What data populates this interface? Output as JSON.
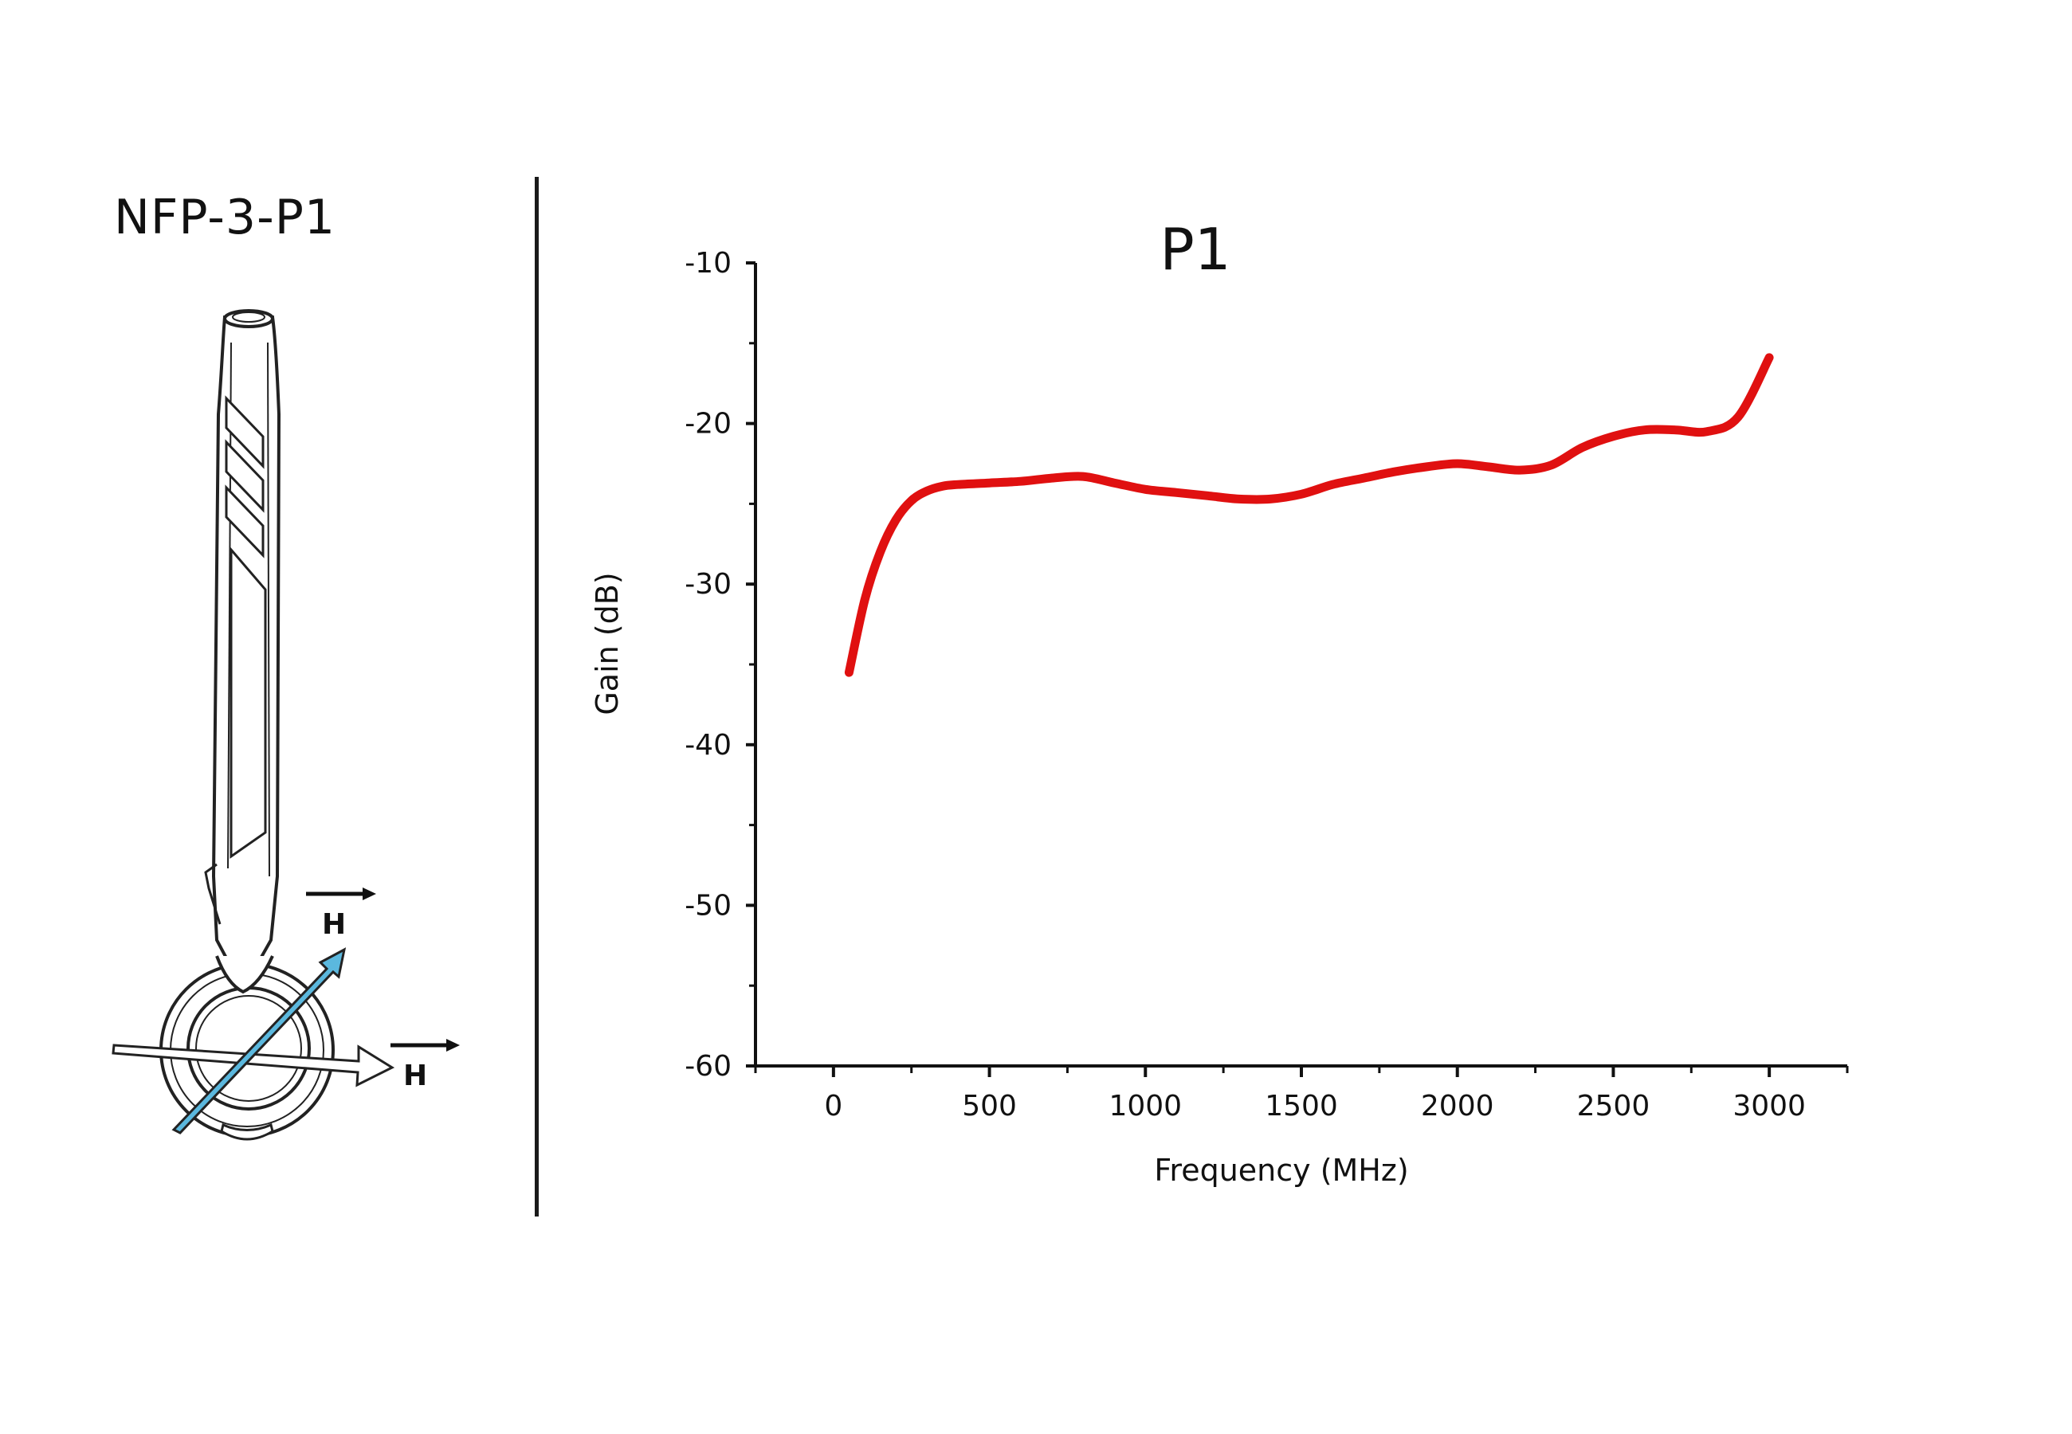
{
  "probe": {
    "title": "NFP-3-P1",
    "field_label_top": "H",
    "field_label_bottom": "H",
    "accent_color": "#5bb8de"
  },
  "chart_data": {
    "type": "line",
    "title": "P1",
    "xlabel": "Frequency (MHz)",
    "ylabel": "Gain (dB)",
    "xlim": [
      -250,
      3250
    ],
    "ylim": [
      -60,
      -10
    ],
    "xticks": [
      0,
      500,
      1000,
      1500,
      2000,
      2500,
      3000
    ],
    "yticks": [
      -10,
      -20,
      -30,
      -40,
      -50,
      -60
    ],
    "grid": false,
    "line_color": "#e01010",
    "series": [
      {
        "x": [
          50,
          100,
          150,
          200,
          250,
          300,
          350,
          400,
          500,
          600,
          700,
          800,
          900,
          1000,
          1100,
          1200,
          1300,
          1400,
          1500,
          1600,
          1700,
          1800,
          1900,
          2000,
          2100,
          2200,
          2300,
          2400,
          2500,
          2600,
          2700,
          2800,
          2900,
          3000
        ],
        "y": [
          -35.5,
          -31,
          -28,
          -26,
          -24.8,
          -24.2,
          -23.9,
          -23.8,
          -23.7,
          -23.6,
          -23.4,
          -23.3,
          -23.7,
          -24.1,
          -24.3,
          -24.5,
          -24.7,
          -24.7,
          -24.4,
          -23.8,
          -23.4,
          -23.0,
          -22.7,
          -22.5,
          -22.7,
          -22.9,
          -22.6,
          -21.5,
          -20.8,
          -20.4,
          -20.4,
          -20.5,
          -19.6,
          -15.9
        ]
      }
    ]
  }
}
